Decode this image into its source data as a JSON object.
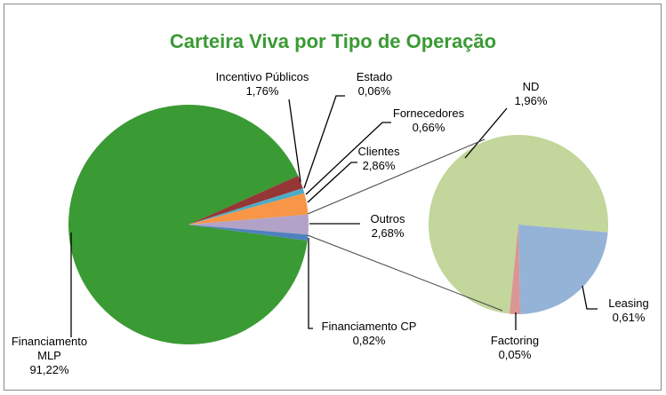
{
  "chart_data": {
    "type": "pie_of_pie",
    "title": "Carteira Viva por Tipo de Operação",
    "categories": [
      "Financiamento MLP",
      "Incentivo Públicos",
      "Estado",
      "Fornecedores",
      "Clientes",
      "Outros",
      "Financiamento CP"
    ],
    "values": [
      91.22,
      1.76,
      0.06,
      0.66,
      2.86,
      2.68,
      0.82
    ],
    "value_labels": [
      "91,22%",
      "1,76%",
      "0,06%",
      "0,66%",
      "2,86%",
      "2,68%",
      "0,82%"
    ],
    "colors": [
      "#3a9a34",
      "#953735",
      "#4f81bd",
      "#4bacc6",
      "#f79646",
      "#b3a2c7",
      "#4f81bd"
    ],
    "secondary": {
      "categories": [
        "ND",
        "Leasing",
        "Factoring"
      ],
      "values": [
        1.96,
        0.61,
        0.05
      ],
      "value_labels": [
        "1,96%",
        "0,61%",
        "0,05%"
      ],
      "colors": [
        "#c3d69b",
        "#95b3d7",
        "#d99694"
      ]
    }
  }
}
